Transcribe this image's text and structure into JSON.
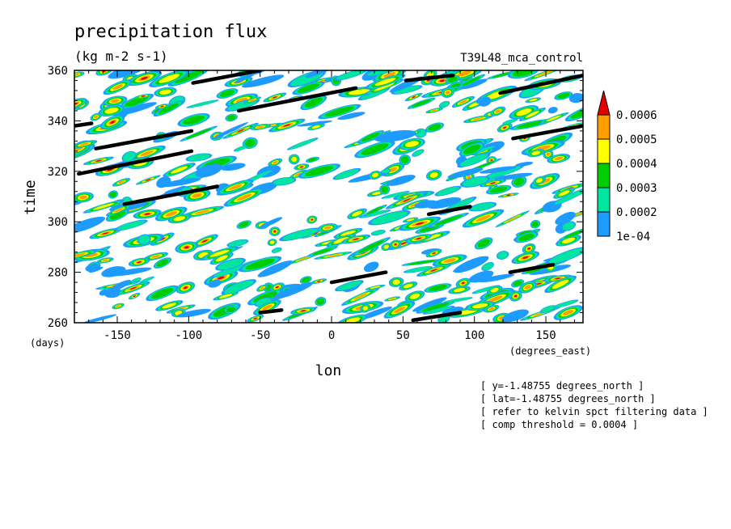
{
  "chart_data": {
    "type": "heatmap",
    "title": "precipitation flux",
    "units": "(kg m-2 s-1)",
    "experiment": "T39L48_mca_control",
    "xlabel": "lon",
    "ylabel": "time",
    "x_units": "(degrees_east)",
    "y_units": "(days)",
    "xlim": [
      -180,
      176
    ],
    "ylim": [
      260,
      360
    ],
    "x_ticks": [
      "-150",
      "-100",
      "-50",
      "0",
      "50",
      "100",
      "150"
    ],
    "y_ticks": [
      "260",
      "280",
      "300",
      "320",
      "340",
      "360"
    ],
    "colorbar": {
      "levels": [
        "1e-04",
        "0.0002",
        "0.0003",
        "0.0004",
        "0.0005",
        "0.0006"
      ],
      "colors": [
        "#1e9bff",
        "#00e6a0",
        "#00cd00",
        "#ffff00",
        "#ff9e00",
        "#e60000"
      ],
      "extend": "max"
    },
    "notes": [
      "[ y=-1.48755 degrees_north ]",
      "[ lat=-1.48755 degrees_north ]",
      "[ refer to kelvin spct filtering data ]",
      "[ comp threshold = 0.0004 ]"
    ],
    "kelvin_tracks": [
      {
        "x": [
          -180,
          -168
        ],
        "y": [
          338,
          339
        ]
      },
      {
        "x": [
          -165,
          -98
        ],
        "y": [
          329,
          336
        ]
      },
      {
        "x": [
          -177,
          -98
        ],
        "y": [
          319,
          328
        ]
      },
      {
        "x": [
          -145,
          -80
        ],
        "y": [
          307,
          314
        ]
      },
      {
        "x": [
          -97,
          -50
        ],
        "y": [
          355,
          360
        ]
      },
      {
        "x": [
          -65,
          17
        ],
        "y": [
          344,
          353
        ]
      },
      {
        "x": [
          0,
          38
        ],
        "y": [
          276,
          280
        ]
      },
      {
        "x": [
          -50,
          -35
        ],
        "y": [
          264,
          265
        ]
      },
      {
        "x": [
          52,
          85
        ],
        "y": [
          356,
          358
        ]
      },
      {
        "x": [
          68,
          97
        ],
        "y": [
          303,
          306
        ]
      },
      {
        "x": [
          57,
          90
        ],
        "y": [
          261,
          264
        ]
      },
      {
        "x": [
          118,
          176
        ],
        "y": [
          351,
          358
        ]
      },
      {
        "x": [
          127,
          176
        ],
        "y": [
          333,
          338
        ]
      },
      {
        "x": [
          125,
          155
        ],
        "y": [
          280,
          283
        ]
      }
    ],
    "grid": false
  }
}
